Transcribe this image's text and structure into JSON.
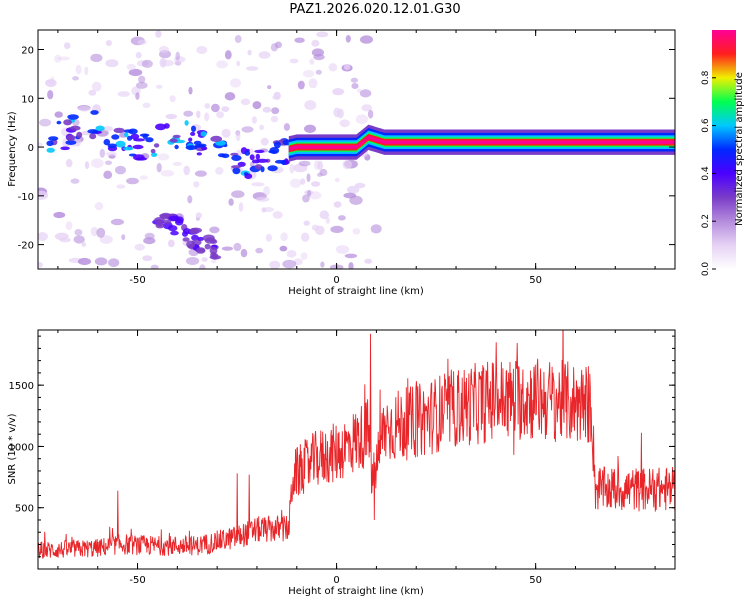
{
  "title": "PAZ1.2026.020.12.01.G30",
  "chart_data": [
    {
      "type": "heatmap",
      "title": "PAZ1.2026.020.12.01.G30",
      "xlabel": "Height of straight line (km)",
      "ylabel": "Frequency (Hz)",
      "xlim": [
        -75,
        85
      ],
      "ylim": [
        -25,
        24
      ],
      "xticks": [
        -50,
        0,
        50
      ],
      "yticks": [
        -20,
        -10,
        0,
        10,
        20
      ],
      "colorbar": {
        "label": "Normalized spectral amplitude",
        "range": [
          0,
          1
        ],
        "ticks": [
          "0.0",
          "0.2",
          "0.4",
          "0.6",
          "0.8"
        ],
        "colors": [
          "#ffffff",
          "#e6d2f5",
          "#b48cdc",
          "#7a3cc8",
          "#4b00ff",
          "#0028ff",
          "#00c8ff",
          "#00ff50",
          "#f0f000",
          "#ff1e1e",
          "#ff0096"
        ]
      },
      "ridge": [
        {
          "x": -70,
          "y": 2
        },
        {
          "x": -62,
          "y": 5
        },
        {
          "x": -55,
          "y": 2
        },
        {
          "x": -48,
          "y": 0
        },
        {
          "x": -40,
          "y": 3
        },
        {
          "x": -30,
          "y": 0
        },
        {
          "x": -25,
          "y": -4
        },
        {
          "x": -20,
          "y": -3
        },
        {
          "x": -15,
          "y": -1
        },
        {
          "x": -10,
          "y": 0
        },
        {
          "x": 0,
          "y": 0
        },
        {
          "x": 5,
          "y": 0
        },
        {
          "x": 8,
          "y": 2
        },
        {
          "x": 12,
          "y": 1
        },
        {
          "x": 20,
          "y": 1
        },
        {
          "x": 30,
          "y": 1
        },
        {
          "x": 50,
          "y": 1
        },
        {
          "x": 85,
          "y": 1
        }
      ]
    },
    {
      "type": "line",
      "title": "",
      "xlabel": "Height of straight line (km)",
      "ylabel": "SNR (10 * v/v)",
      "xlim": [
        -75,
        85
      ],
      "ylim": [
        0,
        1950
      ],
      "xticks": [
        -50,
        0,
        50
      ],
      "yticks": [
        500,
        1000,
        1500
      ],
      "series": [
        {
          "name": "SNR",
          "color": "#e8262a",
          "envelope": [
            {
              "x": -75,
              "y": 150
            },
            {
              "x": -60,
              "y": 170
            },
            {
              "x": -55,
              "y": 200
            },
            {
              "x": -45,
              "y": 190
            },
            {
              "x": -35,
              "y": 190
            },
            {
              "x": -25,
              "y": 260
            },
            {
              "x": -20,
              "y": 320
            },
            {
              "x": -12,
              "y": 330
            },
            {
              "x": -11,
              "y": 760
            },
            {
              "x": -5,
              "y": 900
            },
            {
              "x": 0,
              "y": 950
            },
            {
              "x": 5,
              "y": 1050
            },
            {
              "x": 8,
              "y": 1120
            },
            {
              "x": 9,
              "y": 700
            },
            {
              "x": 12,
              "y": 1150
            },
            {
              "x": 20,
              "y": 1200
            },
            {
              "x": 28,
              "y": 1300
            },
            {
              "x": 40,
              "y": 1380
            },
            {
              "x": 50,
              "y": 1390
            },
            {
              "x": 64,
              "y": 1340
            },
            {
              "x": 65,
              "y": 650
            },
            {
              "x": 85,
              "y": 650
            }
          ],
          "spikes": [
            {
              "x": -55,
              "y": 640
            },
            {
              "x": -25,
              "y": 780
            },
            {
              "x": -22,
              "y": 770
            },
            {
              "x": 8.5,
              "y": 1920
            },
            {
              "x": 9.5,
              "y": 400
            },
            {
              "x": 40,
              "y": 1560
            }
          ]
        }
      ]
    }
  ]
}
